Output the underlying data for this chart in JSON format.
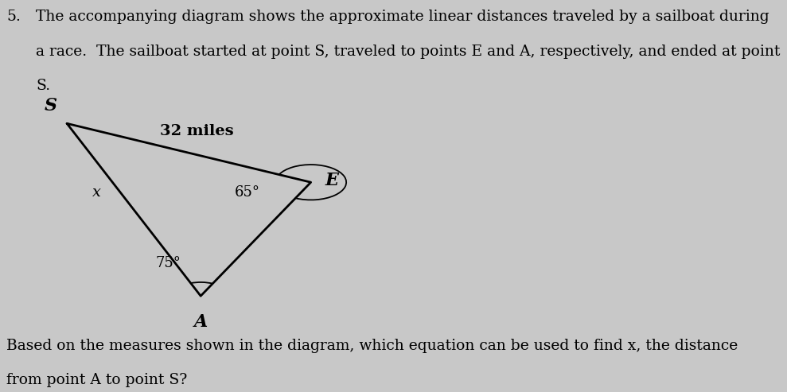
{
  "bg_color": "#c8c8c8",
  "text_color": "#000000",
  "title_number": "5.",
  "title_line1": "The accompanying diagram shows the approximate linear distances traveled by a sailboat during",
  "title_line2": "a race.  The sailboat started at point S, traveled to points E and A, respectively, and ended at point",
  "title_line3": "S.",
  "bottom_line1": "Based on the measures shown in the diagram, which equation can be used to find x, the distance",
  "bottom_line2": "from point A to point S?",
  "point_S": [
    0.085,
    0.685
  ],
  "point_E": [
    0.395,
    0.535
  ],
  "point_A": [
    0.255,
    0.245
  ],
  "label_S": "S",
  "label_E": "E",
  "label_A": "A",
  "label_x": "x",
  "side_SE": "32 miles",
  "angle_E": "65°",
  "angle_A": "75°",
  "font_size_text": 13.5,
  "font_size_labels": 14,
  "font_size_side": 13,
  "font_size_angle": 13
}
